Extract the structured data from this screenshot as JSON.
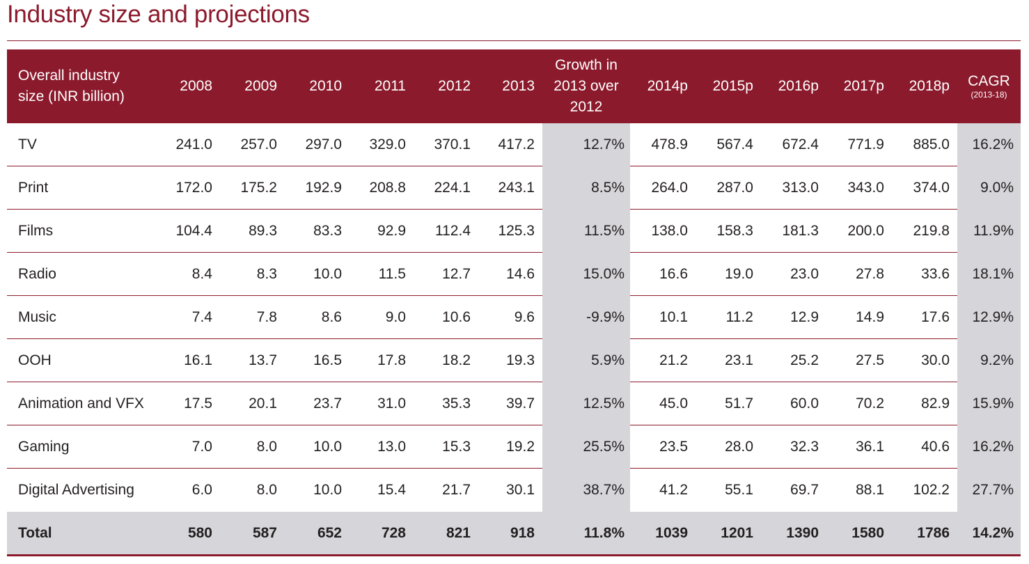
{
  "title": "Industry size and projections",
  "colors": {
    "accent": "#8b1a2c",
    "shade": "#d5d5da",
    "text": "#231f20"
  },
  "table": {
    "headers": {
      "label": [
        "Overall industry",
        "size (INR billion)"
      ],
      "years": [
        "2008",
        "2009",
        "2010",
        "2011",
        "2012",
        "2013"
      ],
      "growth": [
        "Growth in",
        "2013 over",
        "2012"
      ],
      "projections": [
        "2014p",
        "2015p",
        "2016p",
        "2017p",
        "2018p"
      ],
      "cagr": "CAGR",
      "cagr_sub": "(2013-18)"
    },
    "rows": [
      {
        "label": "TV",
        "years": [
          "241.0",
          "257.0",
          "297.0",
          "329.0",
          "370.1",
          "417.2"
        ],
        "growth": "12.7%",
        "projections": [
          "478.9",
          "567.4",
          "672.4",
          "771.9",
          "885.0"
        ],
        "cagr": "16.2%"
      },
      {
        "label": "Print",
        "years": [
          "172.0",
          "175.2",
          "192.9",
          "208.8",
          "224.1",
          "243.1"
        ],
        "growth": "8.5%",
        "projections": [
          "264.0",
          "287.0",
          "313.0",
          "343.0",
          "374.0"
        ],
        "cagr": "9.0%"
      },
      {
        "label": "Films",
        "years": [
          "104.4",
          "89.3",
          "83.3",
          "92.9",
          "112.4",
          "125.3"
        ],
        "growth": "11.5%",
        "projections": [
          "138.0",
          "158.3",
          "181.3",
          "200.0",
          "219.8"
        ],
        "cagr": "11.9%"
      },
      {
        "label": "Radio",
        "years": [
          "8.4",
          "8.3",
          "10.0",
          "11.5",
          "12.7",
          "14.6"
        ],
        "growth": "15.0%",
        "projections": [
          "16.6",
          "19.0",
          "23.0",
          "27.8",
          "33.6"
        ],
        "cagr": "18.1%"
      },
      {
        "label": "Music",
        "years": [
          "7.4",
          "7.8",
          "8.6",
          "9.0",
          "10.6",
          "9.6"
        ],
        "growth": "-9.9%",
        "projections": [
          "10.1",
          "11.2",
          "12.9",
          "14.9",
          "17.6"
        ],
        "cagr": "12.9%"
      },
      {
        "label": "OOH",
        "years": [
          "16.1",
          "13.7",
          "16.5",
          "17.8",
          "18.2",
          "19.3"
        ],
        "growth": "5.9%",
        "projections": [
          "21.2",
          "23.1",
          "25.2",
          "27.5",
          "30.0"
        ],
        "cagr": "9.2%"
      },
      {
        "label": "Animation and VFX",
        "years": [
          "17.5",
          "20.1",
          "23.7",
          "31.0",
          "35.3",
          "39.7"
        ],
        "growth": "12.5%",
        "projections": [
          "45.0",
          "51.7",
          "60.0",
          "70.2",
          "82.9"
        ],
        "cagr": "15.9%"
      },
      {
        "label": "Gaming",
        "years": [
          "7.0",
          "8.0",
          "10.0",
          "13.0",
          "15.3",
          "19.2"
        ],
        "growth": "25.5%",
        "projections": [
          "23.5",
          "28.0",
          "32.3",
          "36.1",
          "40.6"
        ],
        "cagr": "16.2%"
      },
      {
        "label": "Digital Advertising",
        "years": [
          "6.0",
          "8.0",
          "10.0",
          "15.4",
          "21.7",
          "30.1"
        ],
        "growth": "38.7%",
        "projections": [
          "41.2",
          "55.1",
          "69.7",
          "88.1",
          "102.2"
        ],
        "cagr": "27.7%"
      }
    ],
    "total": {
      "label": "Total",
      "years": [
        "580",
        "587",
        "652",
        "728",
        "821",
        "918"
      ],
      "growth": "11.8%",
      "projections": [
        "1039",
        "1201",
        "1390",
        "1580",
        "1786"
      ],
      "cagr": "14.2%"
    }
  }
}
